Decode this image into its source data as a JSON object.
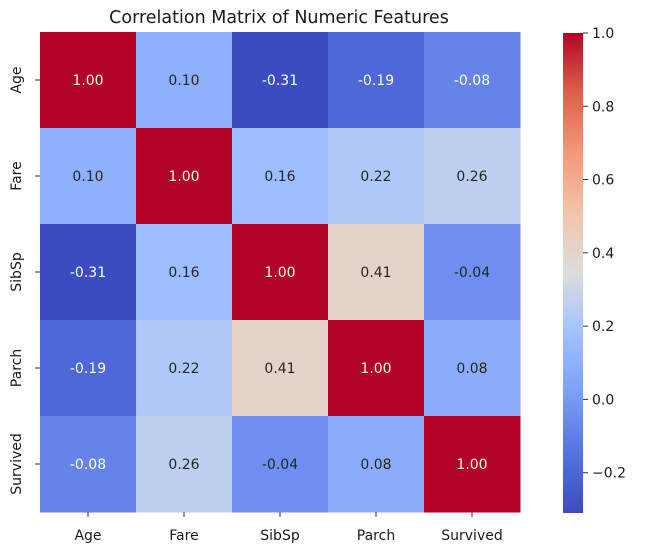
{
  "chart_data": {
    "type": "heatmap",
    "title": "Correlation Matrix of Numeric Features",
    "xlabel": "",
    "ylabel": "",
    "x_categories": [
      "Age",
      "Fare",
      "SibSp",
      "Parch",
      "Survived"
    ],
    "y_categories": [
      "Age",
      "Fare",
      "SibSp",
      "Parch",
      "Survived"
    ],
    "values": [
      [
        1.0,
        0.1,
        -0.31,
        -0.19,
        -0.08
      ],
      [
        0.1,
        1.0,
        0.16,
        0.22,
        0.26
      ],
      [
        -0.31,
        0.16,
        1.0,
        0.41,
        -0.04
      ],
      [
        -0.19,
        0.22,
        0.41,
        1.0,
        0.08
      ],
      [
        -0.08,
        0.26,
        -0.04,
        0.08,
        1.0
      ]
    ],
    "cell_labels": [
      [
        "1.00",
        "0.10",
        "-0.31",
        "-0.19",
        "-0.08"
      ],
      [
        "0.10",
        "1.00",
        "0.16",
        "0.22",
        "0.26"
      ],
      [
        "-0.31",
        "0.16",
        "1.00",
        "0.41",
        "-0.04"
      ],
      [
        "-0.19",
        "0.22",
        "0.41",
        "1.00",
        "0.08"
      ],
      [
        "-0.08",
        "0.26",
        "-0.04",
        "0.08",
        "1.00"
      ]
    ],
    "colormap": "coolwarm",
    "colorbar": {
      "range": [
        -0.31,
        1.0
      ],
      "ticks": [
        -0.2,
        0.0,
        0.2,
        0.4,
        0.6,
        0.8,
        1.0
      ],
      "tick_labels": [
        "−0.2",
        "0.0",
        "0.2",
        "0.4",
        "0.6",
        "0.8",
        "1.0"
      ]
    },
    "grid": false
  }
}
